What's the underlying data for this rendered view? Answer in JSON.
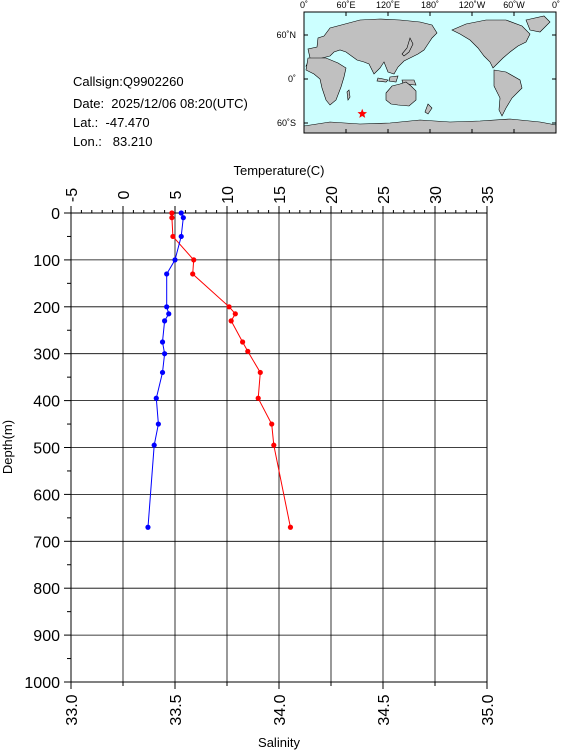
{
  "info": {
    "callsign": "Callsign:Q9902260",
    "date": "Date:  2025/12/06 08:20(UTC)",
    "lat": "Lat.:  -47.470",
    "lon": "Lon.:   83.210"
  },
  "map": {
    "lon_ticks": [
      "0˚",
      "60˚E",
      "120˚E",
      "180˚",
      "120˚W",
      "60˚W",
      "0˚"
    ],
    "lat_ticks": [
      "60˚N",
      "0˚",
      "60˚S"
    ],
    "marker": {
      "lon_e": 83.21,
      "lat": -47.47,
      "color": "#ff0000"
    },
    "ocean_color": "#ccffff",
    "land_color": "#c0c0c0"
  },
  "chart_data": {
    "type": "line",
    "title": "",
    "ylabel": "Depth(m)",
    "y_ticks": [
      "0",
      "100",
      "200",
      "300",
      "400",
      "500",
      "600",
      "700",
      "800",
      "900",
      "1000"
    ],
    "ylim": [
      0,
      1000
    ],
    "y_inverted": true,
    "grid": true,
    "top_axis": {
      "label": "Temperature(C)",
      "range": [
        -5,
        35
      ],
      "ticks": [
        "-5",
        "0",
        "5",
        "10",
        "15",
        "20",
        "25",
        "30",
        "35"
      ]
    },
    "bottom_axis": {
      "label": "Salinity",
      "range": [
        33.0,
        35.0
      ],
      "ticks": [
        "33.0",
        "33.5",
        "34.0",
        "34.5",
        "35.0"
      ]
    },
    "series": [
      {
        "color": "#ff0000",
        "axis": "top",
        "points": [
          [
            4.7,
            0
          ],
          [
            4.7,
            10
          ],
          [
            4.8,
            50
          ],
          [
            6.8,
            100
          ],
          [
            6.7,
            130
          ],
          [
            10.2,
            200
          ],
          [
            10.8,
            215
          ],
          [
            10.4,
            230
          ],
          [
            11.5,
            275
          ],
          [
            12.0,
            295
          ],
          [
            13.2,
            340
          ],
          [
            13.0,
            395
          ],
          [
            14.3,
            450
          ],
          [
            14.5,
            495
          ],
          [
            16.1,
            670
          ]
        ]
      },
      {
        "color": "#0000ff",
        "axis": "bottom",
        "points": [
          [
            33.53,
            0
          ],
          [
            33.54,
            10
          ],
          [
            33.53,
            50
          ],
          [
            33.5,
            100
          ],
          [
            33.46,
            130
          ],
          [
            33.46,
            200
          ],
          [
            33.47,
            215
          ],
          [
            33.45,
            230
          ],
          [
            33.44,
            275
          ],
          [
            33.45,
            300
          ],
          [
            33.44,
            340
          ],
          [
            33.41,
            395
          ],
          [
            33.42,
            450
          ],
          [
            33.4,
            495
          ],
          [
            33.37,
            670
          ]
        ]
      }
    ]
  }
}
